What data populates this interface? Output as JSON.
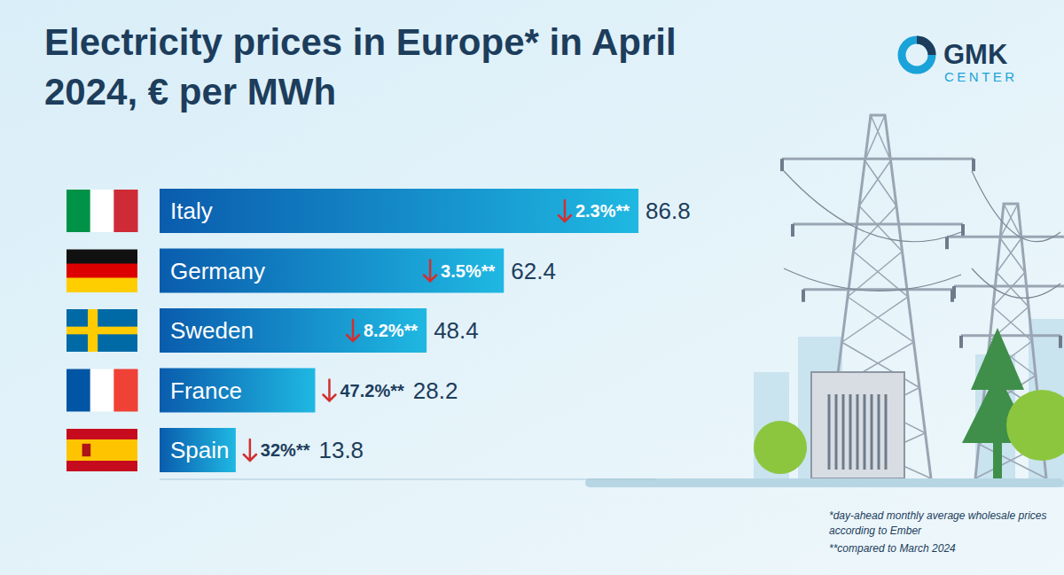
{
  "chart_data": {
    "type": "bar",
    "orientation": "horizontal",
    "title": "Electricity prices in Europe* in April 2024, € per MWh",
    "categories": [
      "Italy",
      "Germany",
      "Sweden",
      "France",
      "Spain"
    ],
    "values": [
      86.8,
      62.4,
      48.4,
      28.2,
      13.8
    ],
    "changes": [
      -2.3,
      -3.5,
      -8.2,
      -47.2,
      -32
    ],
    "change_labels": [
      "2.3%**",
      "3.5%**",
      "8.2%**",
      "47.2%**",
      "32%**"
    ],
    "color": "#0a5cad",
    "xlim": [
      0,
      90
    ],
    "data_labels": true,
    "tick_labels": false,
    "grid": false,
    "footnotes": [
      "*day-ahead monthly average wholesale prices according to Ember",
      "**compared to March 2024"
    ]
  },
  "logo": [
    "GMK",
    "CENTER"
  ]
}
